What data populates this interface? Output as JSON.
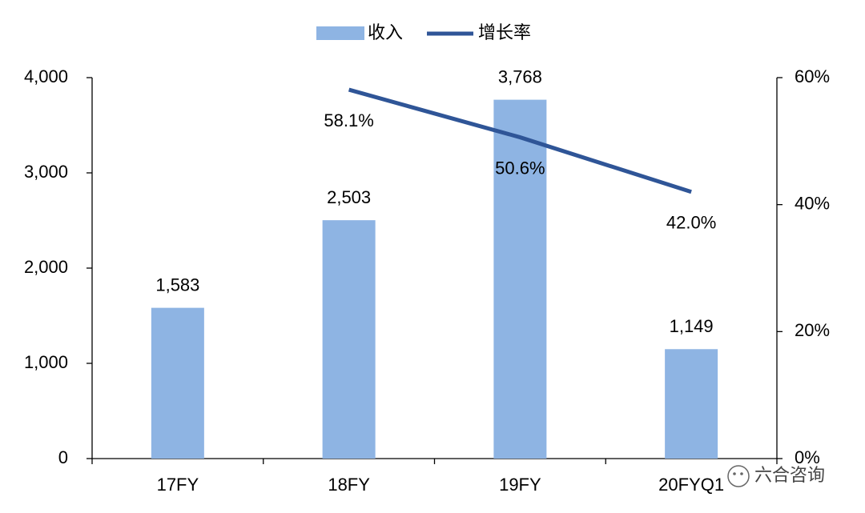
{
  "chart_data": {
    "type": "bar_line",
    "categories": [
      "17FY",
      "18FY",
      "19FY",
      "20FYQ1"
    ],
    "series": [
      {
        "name": "收入",
        "type": "bar",
        "color": "#8eb4e3",
        "values": [
          1583,
          2503,
          3768,
          1149
        ],
        "value_labels": [
          "1,583",
          "2,503",
          "3,768",
          "1,149"
        ]
      },
      {
        "name": "增长率",
        "type": "line",
        "axis": "y2",
        "color": "#2f5597",
        "values": [
          null,
          58.1,
          50.6,
          42.0
        ],
        "value_labels": [
          null,
          "58.1%",
          "50.6%",
          "42.0%"
        ]
      }
    ],
    "ylim": [
      0,
      4000
    ],
    "yticks": [
      0,
      {
        "value": 1000,
        "label": "1,000"
      },
      {
        "value": 2000,
        "label": "2,000"
      },
      {
        "value": 3000,
        "label": "3,000"
      },
      {
        "value": 4000,
        "label": "4,000"
      }
    ],
    "y2lim": [
      0,
      60
    ],
    "y2ticks": [
      {
        "value": 0,
        "label": "0%"
      },
      {
        "value": 20,
        "label": "20%"
      },
      {
        "value": 40,
        "label": "40%"
      },
      {
        "value": 60,
        "label": "60%"
      }
    ],
    "grid": false,
    "legend": "top"
  },
  "watermark": "六合咨询"
}
